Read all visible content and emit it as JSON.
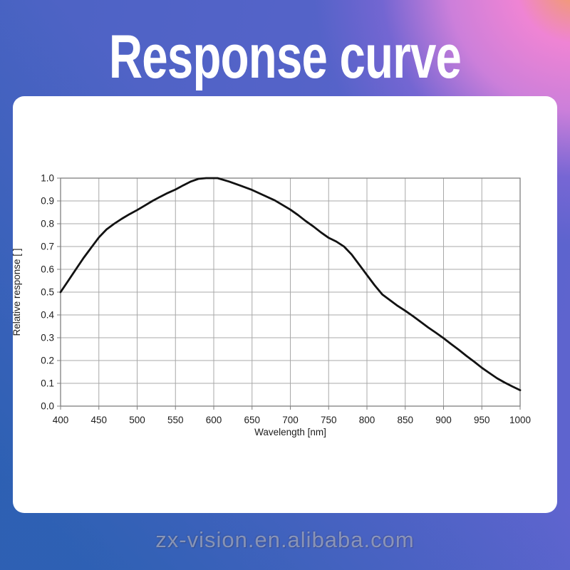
{
  "page": {
    "title": "Response curve",
    "watermark": "zx-vision.en.alibaba.com"
  },
  "colors": {
    "background_top_left": "#4c63c4",
    "background_bottom_left": "#3365ad",
    "background_bottom_right": "#5f64cf",
    "background_corner_orange": "#f2a159",
    "background_corner_pink": "#ef84d4",
    "card_background": "#ffffff",
    "title_text": "#ffffff",
    "grid": "#a8a8a8",
    "axis": "#7f7f7f",
    "tick_text": "#1c1c1c",
    "curve": "#121212",
    "watermark_text": "#c8ccd6"
  },
  "chart_data": {
    "type": "line",
    "title": "",
    "xlabel": "Wavelength [nm]",
    "ylabel": "Relative response [ ]",
    "xlim": [
      400,
      1000
    ],
    "ylim": [
      0.0,
      1.0
    ],
    "grid": true,
    "legend": "none",
    "x_tick_values": [
      400,
      450,
      500,
      550,
      600,
      650,
      700,
      750,
      800,
      850,
      900,
      950,
      1000
    ],
    "x_tick_labels": [
      "400",
      "450",
      "500",
      "550",
      "600",
      "650",
      "700",
      "750",
      "800",
      "850",
      "900",
      "950",
      "1000"
    ],
    "y_tick_values": [
      0.0,
      0.1,
      0.2,
      0.3,
      0.4,
      0.5,
      0.6,
      0.7,
      0.8,
      0.9,
      1.0
    ],
    "y_tick_labels": [
      "0.0",
      "0.1",
      "0.2",
      "0.3",
      "0.4",
      "0.5",
      "0.6",
      "0.7",
      "0.8",
      "0.9",
      "1.0"
    ],
    "series": [
      {
        "name": "relative-response",
        "color": "#121212",
        "points": [
          [
            400,
            0.5
          ],
          [
            410,
            0.55
          ],
          [
            420,
            0.6
          ],
          [
            430,
            0.65
          ],
          [
            440,
            0.695
          ],
          [
            450,
            0.74
          ],
          [
            460,
            0.775
          ],
          [
            470,
            0.8
          ],
          [
            480,
            0.822
          ],
          [
            490,
            0.842
          ],
          [
            500,
            0.86
          ],
          [
            510,
            0.88
          ],
          [
            520,
            0.9
          ],
          [
            530,
            0.918
          ],
          [
            540,
            0.935
          ],
          [
            550,
            0.95
          ],
          [
            560,
            0.968
          ],
          [
            570,
            0.985
          ],
          [
            580,
            0.997
          ],
          [
            590,
            1.0
          ],
          [
            605,
            1.0
          ],
          [
            620,
            0.985
          ],
          [
            635,
            0.967
          ],
          [
            650,
            0.948
          ],
          [
            665,
            0.925
          ],
          [
            680,
            0.902
          ],
          [
            690,
            0.882
          ],
          [
            700,
            0.862
          ],
          [
            710,
            0.838
          ],
          [
            720,
            0.812
          ],
          [
            730,
            0.788
          ],
          [
            740,
            0.762
          ],
          [
            750,
            0.738
          ],
          [
            760,
            0.722
          ],
          [
            770,
            0.7
          ],
          [
            780,
            0.665
          ],
          [
            790,
            0.62
          ],
          [
            800,
            0.575
          ],
          [
            810,
            0.53
          ],
          [
            820,
            0.49
          ],
          [
            830,
            0.465
          ],
          [
            840,
            0.44
          ],
          [
            850,
            0.418
          ],
          [
            860,
            0.395
          ],
          [
            870,
            0.37
          ],
          [
            880,
            0.345
          ],
          [
            890,
            0.322
          ],
          [
            900,
            0.298
          ],
          [
            910,
            0.272
          ],
          [
            920,
            0.247
          ],
          [
            930,
            0.22
          ],
          [
            940,
            0.195
          ],
          [
            950,
            0.168
          ],
          [
            960,
            0.145
          ],
          [
            970,
            0.122
          ],
          [
            980,
            0.103
          ],
          [
            990,
            0.086
          ],
          [
            1000,
            0.07
          ]
        ]
      }
    ]
  }
}
